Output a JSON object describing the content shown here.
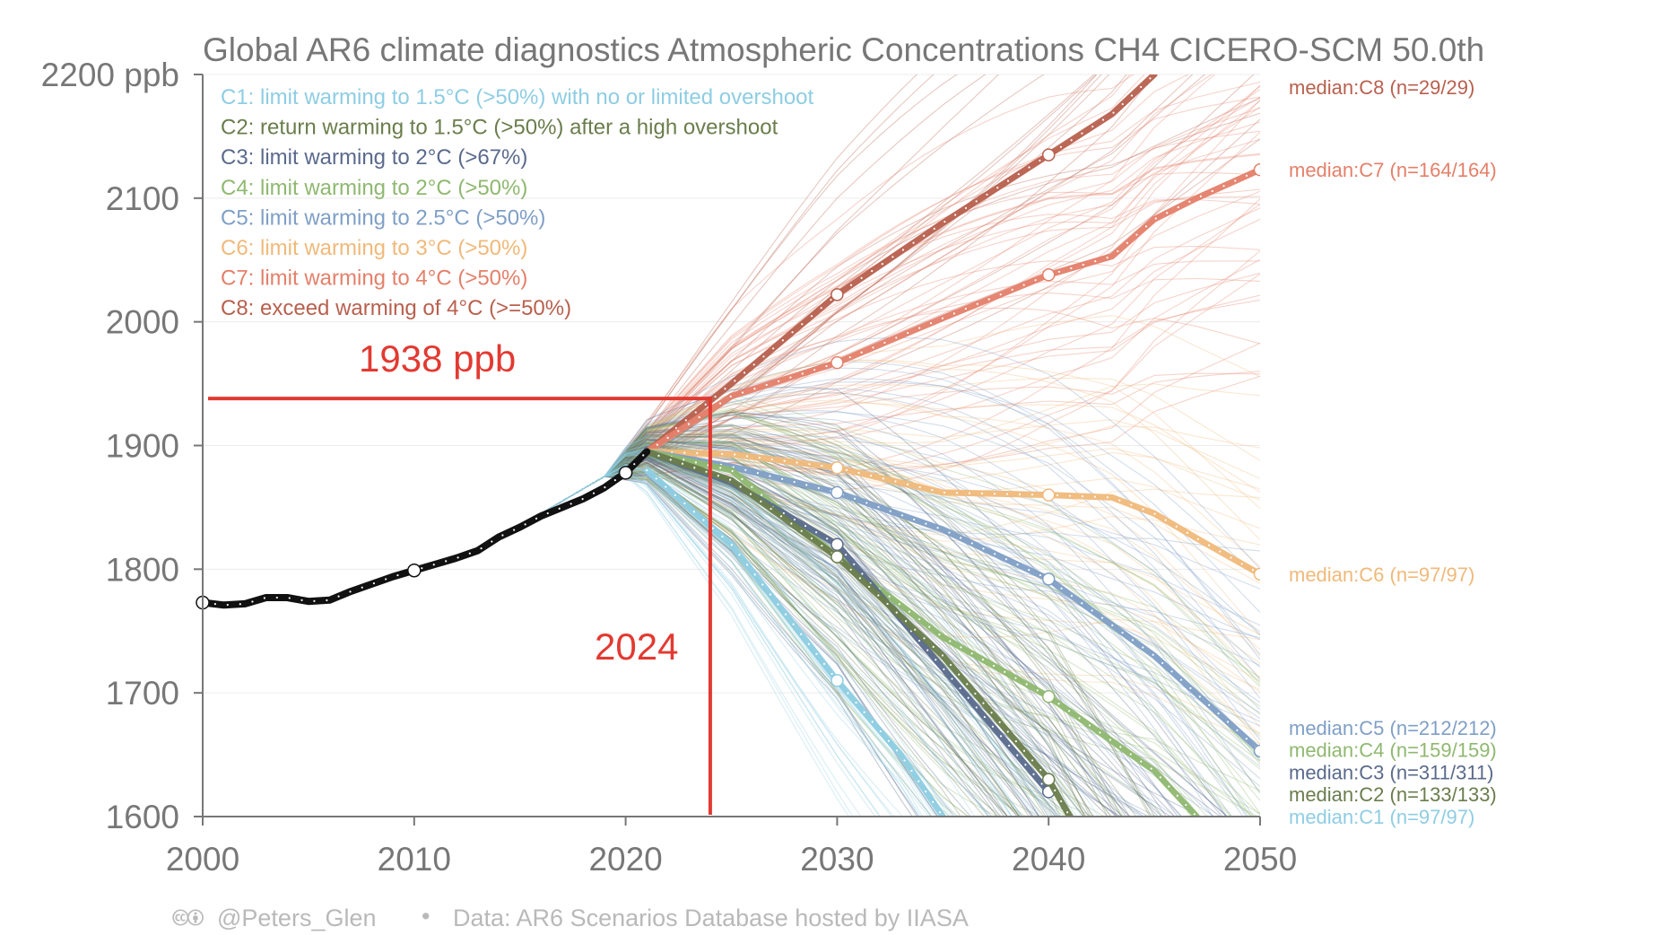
{
  "chart_data": {
    "type": "line",
    "title": "Global AR6 climate diagnostics Atmospheric Concentrations CH4 CICERO-SCM 50.0th",
    "ylim": [
      1600,
      2200
    ],
    "xlim": [
      2000,
      2050
    ],
    "y_ticks": [
      {
        "value": 2200,
        "label": "2200 ppb"
      },
      {
        "value": 2100,
        "label": "2100"
      },
      {
        "value": 2000,
        "label": "2000"
      },
      {
        "value": 1900,
        "label": "1900"
      },
      {
        "value": 1800,
        "label": "1800"
      },
      {
        "value": 1700,
        "label": "1700"
      },
      {
        "value": 1600,
        "label": "1600"
      }
    ],
    "x_ticks": [
      {
        "value": 2000,
        "label": "2000"
      },
      {
        "value": 2010,
        "label": "2010"
      },
      {
        "value": 2020,
        "label": "2020"
      },
      {
        "value": 2030,
        "label": "2030"
      },
      {
        "value": 2040,
        "label": "2040"
      },
      {
        "value": 2050,
        "label": "2050"
      }
    ],
    "legend": [
      {
        "key": "C1",
        "text": "C1: limit warming to 1.5°C (>50%) with no or limited overshoot",
        "color": "#8ecde3"
      },
      {
        "key": "C2",
        "text": "C2: return warming to 1.5°C (>50%) after a high overshoot",
        "color": "#6a7d4c"
      },
      {
        "key": "C3",
        "text": "C3: limit warming to 2°C (>67%)",
        "color": "#5a6a8c"
      },
      {
        "key": "C4",
        "text": "C4: limit warming to 2°C (>50%)",
        "color": "#8fb870"
      },
      {
        "key": "C5",
        "text": "C5: limit warming to 2.5°C (>50%)",
        "color": "#7f9fc6"
      },
      {
        "key": "C6",
        "text": "C6: limit warming to 3°C (>50%)",
        "color": "#f0b97a"
      },
      {
        "key": "C7",
        "text": "C7: limit warming to 4°C (>50%)",
        "color": "#e4806a"
      },
      {
        "key": "C8",
        "text": "C8: exceed warming of 4°C (>=50%)",
        "color": "#b8604e"
      }
    ],
    "historical": {
      "name": "historical",
      "color": "#111111",
      "x": [
        2000,
        2001,
        2002,
        2003,
        2004,
        2005,
        2006,
        2007,
        2008,
        2009,
        2010,
        2011,
        2012,
        2013,
        2014,
        2015,
        2016,
        2017,
        2018,
        2019,
        2020,
        2021
      ],
      "y": [
        1773,
        1771,
        1772,
        1777,
        1777,
        1774,
        1775,
        1782,
        1788,
        1794,
        1799,
        1804,
        1809,
        1815,
        1826,
        1834,
        1843,
        1850,
        1857,
        1866,
        1878,
        1895
      ]
    },
    "series": [
      {
        "name": "C8",
        "color": "#b8604e",
        "median_label": "median:C8 (n=29/29)",
        "x": [
          2021,
          2025,
          2030,
          2035,
          2040,
          2043,
          2045
        ],
        "y": [
          1895,
          1950,
          2022,
          2080,
          2135,
          2168,
          2200
        ]
      },
      {
        "name": "C7",
        "color": "#e4806a",
        "median_label": "median:C7 (n=164/164)",
        "x": [
          2021,
          2025,
          2030,
          2035,
          2040,
          2043,
          2045,
          2047,
          2050
        ],
        "y": [
          1895,
          1940,
          1967,
          2003,
          2038,
          2053,
          2083,
          2100,
          2123
        ]
      },
      {
        "name": "C6",
        "color": "#f0b97a",
        "median_label": "median:C6 (n=97/97)",
        "x": [
          2021,
          2025,
          2030,
          2035,
          2040,
          2043,
          2045,
          2047,
          2050
        ],
        "y": [
          1895,
          1893,
          1882,
          1862,
          1860,
          1858,
          1845,
          1825,
          1796
        ]
      },
      {
        "name": "C5",
        "color": "#7f9fc6",
        "median_label": "median:C5 (n=212/212)",
        "x": [
          2021,
          2025,
          2030,
          2035,
          2040,
          2045,
          2050
        ],
        "y": [
          1895,
          1883,
          1862,
          1832,
          1792,
          1730,
          1653
        ]
      },
      {
        "name": "C4",
        "color": "#8fb870",
        "median_label": "median:C4 (n=159/159)",
        "x": [
          2021,
          2025,
          2030,
          2035,
          2040,
          2045,
          2047
        ],
        "y": [
          1895,
          1880,
          1810,
          1745,
          1697,
          1637,
          1600
        ]
      },
      {
        "name": "C3",
        "color": "#5a6a8c",
        "median_label": "median:C3 (n=311/311)",
        "x": [
          2021,
          2025,
          2030,
          2035,
          2038,
          2040
        ],
        "y": [
          1895,
          1870,
          1820,
          1720,
          1660,
          1620
        ]
      },
      {
        "name": "C2",
        "color": "#6a7d4c",
        "median_label": "median:C2 (n=133/133)",
        "x": [
          2021,
          2025,
          2030,
          2035,
          2040,
          2041
        ],
        "y": [
          1895,
          1872,
          1810,
          1730,
          1630,
          1600
        ]
      },
      {
        "name": "C1",
        "color": "#8ecde3",
        "median_label": "median:C1 (n=97/97)",
        "x": [
          2021,
          2025,
          2030,
          2033,
          2035
        ],
        "y": [
          1880,
          1820,
          1710,
          1650,
          1600
        ]
      }
    ],
    "annotations": {
      "value_label": "1938 ppb",
      "value_ppb": 1938,
      "year_label": "2024",
      "year": 2024,
      "color": "#e23a32"
    },
    "footer": {
      "cc_glyphs": "🅭🅯",
      "author": "@Peters_Glen",
      "separator": "•",
      "source": "Data: AR6 Scenarios Database hosted by IIASA"
    }
  }
}
